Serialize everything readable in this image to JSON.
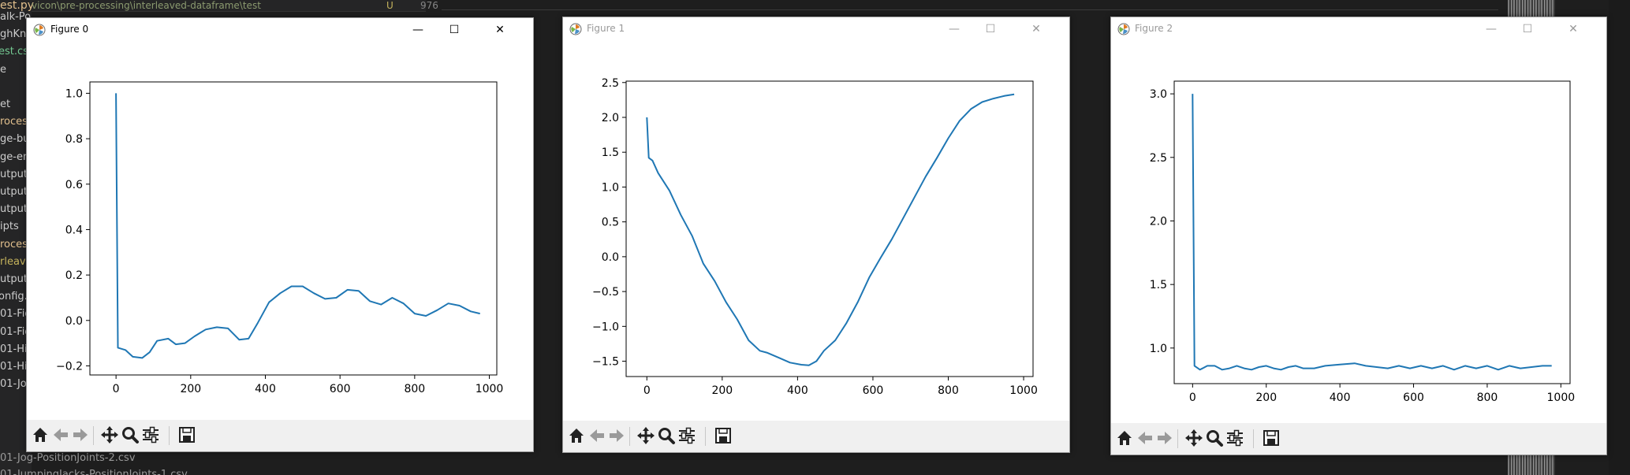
{
  "background": {
    "tab_file": "est.py",
    "tab_path": "vicon\\pre-processing\\interleaved-dataframe\\test",
    "tab_marker": "U",
    "line_number": "976",
    "sidebar_items": [
      "alk-Po",
      "ghKne",
      "est.csv",
      "e",
      "",
      "et",
      "rocess",
      "ge-bu",
      "ge-en",
      "utput",
      "utput-",
      "utput-",
      "ipts",
      "rocess",
      "rleave",
      "utput",
      "onfig.j",
      "01-Fig",
      "01-Fig",
      "01-Hi",
      "01-Hi",
      "01-Jo"
    ],
    "bottom_items": [
      "01-Jog-PositionJoints-2.csv",
      "01-JumpingJacks-PositionJoints-1.csv"
    ]
  },
  "windows": [
    {
      "title": "Figure 0",
      "active": true,
      "chart_data": {
        "type": "line",
        "xlim": [
          -70,
          1020
        ],
        "ylim": [
          -0.24,
          1.05
        ],
        "xticks": [
          0,
          200,
          400,
          600,
          800,
          1000
        ],
        "yticks": [
          -0.2,
          0.0,
          0.2,
          0.4,
          0.6,
          0.8,
          1.0
        ],
        "ytick_labels": [
          "−0.2",
          "0.0",
          "0.2",
          "0.4",
          "0.6",
          "0.8",
          "1.0"
        ],
        "color": "#1f77b4",
        "x": [
          0,
          5,
          25,
          45,
          70,
          90,
          110,
          140,
          160,
          185,
          210,
          240,
          270,
          300,
          330,
          355,
          380,
          410,
          440,
          470,
          500,
          530,
          560,
          590,
          620,
          650,
          680,
          710,
          740,
          770,
          800,
          830,
          860,
          890,
          920,
          950,
          975
        ],
        "y": [
          1.0,
          -0.12,
          -0.13,
          -0.16,
          -0.165,
          -0.14,
          -0.09,
          -0.08,
          -0.105,
          -0.1,
          -0.07,
          -0.04,
          -0.03,
          -0.035,
          -0.085,
          -0.08,
          -0.01,
          0.08,
          0.12,
          0.15,
          0.15,
          0.12,
          0.095,
          0.1,
          0.135,
          0.13,
          0.085,
          0.07,
          0.1,
          0.075,
          0.03,
          0.02,
          0.045,
          0.075,
          0.065,
          0.04,
          0.03
        ]
      },
      "toolbar": [
        "home-icon",
        "back-icon",
        "forward-icon",
        "pan-icon",
        "zoom-icon",
        "configure-icon",
        "save-icon"
      ]
    },
    {
      "title": "Figure 1",
      "active": false,
      "chart_data": {
        "type": "line",
        "xlim": [
          -55,
          1025
        ],
        "ylim": [
          -1.72,
          2.52
        ],
        "xticks": [
          0,
          200,
          400,
          600,
          800,
          1000
        ],
        "yticks": [
          -1.5,
          -1.0,
          -0.5,
          0.0,
          0.5,
          1.0,
          1.5,
          2.0,
          2.5
        ],
        "ytick_labels": [
          "−1.5",
          "−1.0",
          "−0.5",
          "0.0",
          "0.5",
          "1.0",
          "1.5",
          "2.0",
          "2.5"
        ],
        "color": "#1f77b4",
        "x": [
          0,
          5,
          15,
          30,
          60,
          90,
          120,
          150,
          180,
          210,
          240,
          270,
          300,
          320,
          350,
          380,
          410,
          430,
          450,
          470,
          500,
          530,
          560,
          590,
          620,
          650,
          680,
          710,
          740,
          770,
          800,
          830,
          860,
          890,
          920,
          950,
          975
        ],
        "y": [
          2.0,
          1.42,
          1.38,
          1.2,
          0.95,
          0.6,
          0.3,
          -0.1,
          -0.35,
          -0.65,
          -0.9,
          -1.2,
          -1.35,
          -1.38,
          -1.45,
          -1.52,
          -1.55,
          -1.56,
          -1.5,
          -1.35,
          -1.2,
          -0.95,
          -0.65,
          -0.3,
          -0.02,
          0.25,
          0.55,
          0.85,
          1.15,
          1.42,
          1.7,
          1.95,
          2.12,
          2.22,
          2.27,
          2.31,
          2.33
        ]
      },
      "toolbar": [
        "home-icon",
        "back-icon",
        "forward-icon",
        "pan-icon",
        "zoom-icon",
        "configure-icon",
        "save-icon"
      ]
    },
    {
      "title": "Figure 2",
      "active": false,
      "chart_data": {
        "type": "line",
        "xlim": [
          -50,
          1025
        ],
        "ylim": [
          0.72,
          3.1
        ],
        "xticks": [
          0,
          200,
          400,
          600,
          800,
          1000
        ],
        "yticks": [
          1.0,
          1.5,
          2.0,
          2.5,
          3.0
        ],
        "ytick_labels": [
          "1.0",
          "1.5",
          "2.0",
          "2.5",
          "3.0"
        ],
        "color": "#1f77b4",
        "x": [
          0,
          5,
          20,
          40,
          60,
          80,
          100,
          120,
          140,
          160,
          180,
          200,
          220,
          240,
          260,
          280,
          300,
          330,
          360,
          400,
          440,
          470,
          500,
          530,
          560,
          590,
          620,
          650,
          680,
          710,
          740,
          770,
          800,
          830,
          860,
          890,
          920,
          950,
          975
        ],
        "y": [
          3.0,
          0.86,
          0.83,
          0.86,
          0.86,
          0.83,
          0.84,
          0.86,
          0.84,
          0.83,
          0.85,
          0.86,
          0.84,
          0.83,
          0.85,
          0.86,
          0.84,
          0.84,
          0.86,
          0.87,
          0.88,
          0.86,
          0.85,
          0.84,
          0.86,
          0.84,
          0.86,
          0.84,
          0.86,
          0.83,
          0.86,
          0.84,
          0.86,
          0.83,
          0.86,
          0.84,
          0.85,
          0.86,
          0.86
        ]
      },
      "toolbar": [
        "home-icon",
        "back-icon",
        "forward-icon",
        "pan-icon",
        "zoom-icon",
        "configure-icon",
        "save-icon"
      ]
    }
  ]
}
